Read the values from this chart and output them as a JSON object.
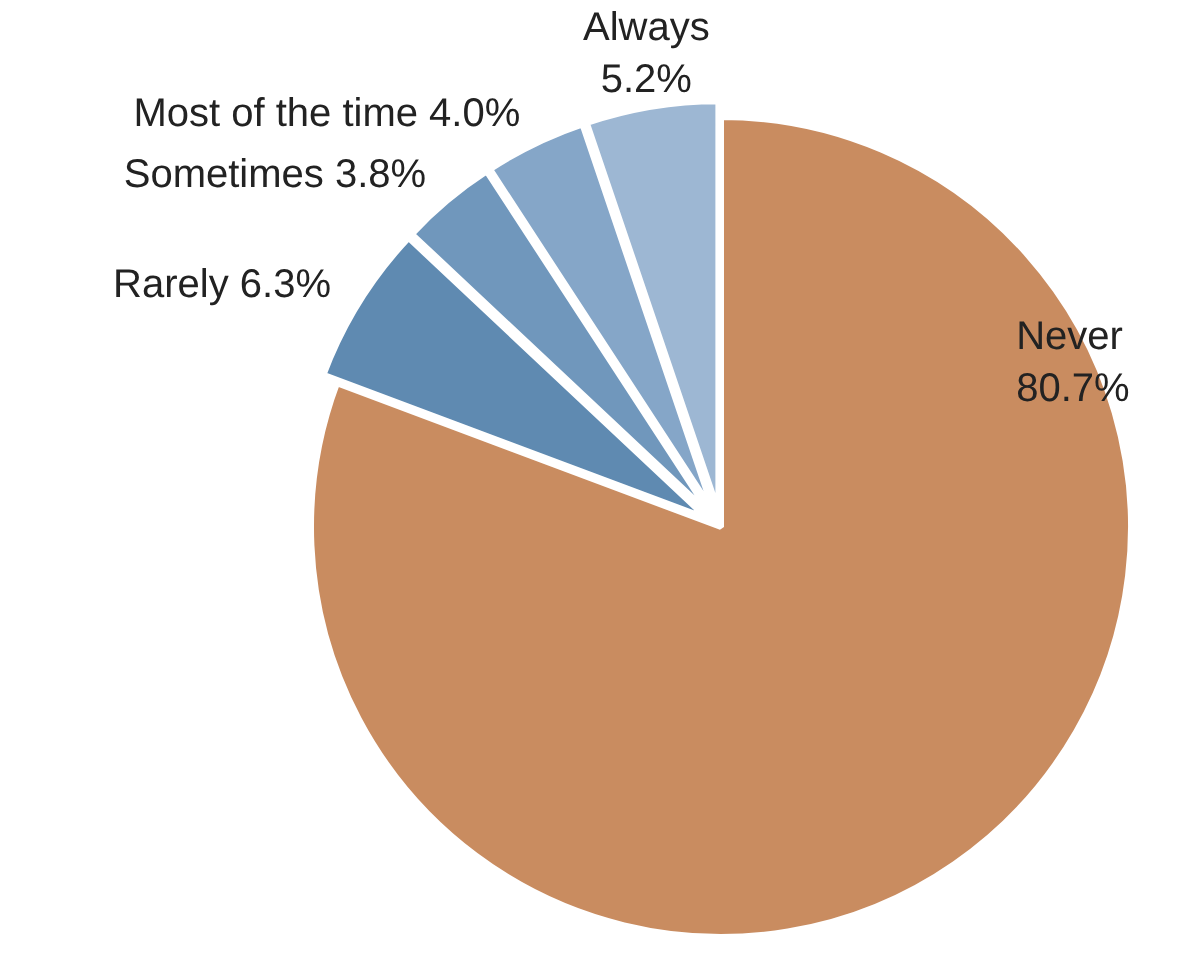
{
  "chart_data": {
    "type": "pie",
    "categories": [
      "Never",
      "Rarely",
      "Sometimes",
      "Most of the time",
      "Always"
    ],
    "values": [
      80.7,
      6.3,
      3.8,
      4.0,
      5.2
    ],
    "value_labels": [
      "80.7%",
      "6.3%",
      "3.8%",
      "4.0%",
      "5.2%"
    ],
    "colors": [
      "#c98c60",
      "#5f8ab1",
      "#7097bc",
      "#85a6c8",
      "#9db7d3"
    ]
  }
}
